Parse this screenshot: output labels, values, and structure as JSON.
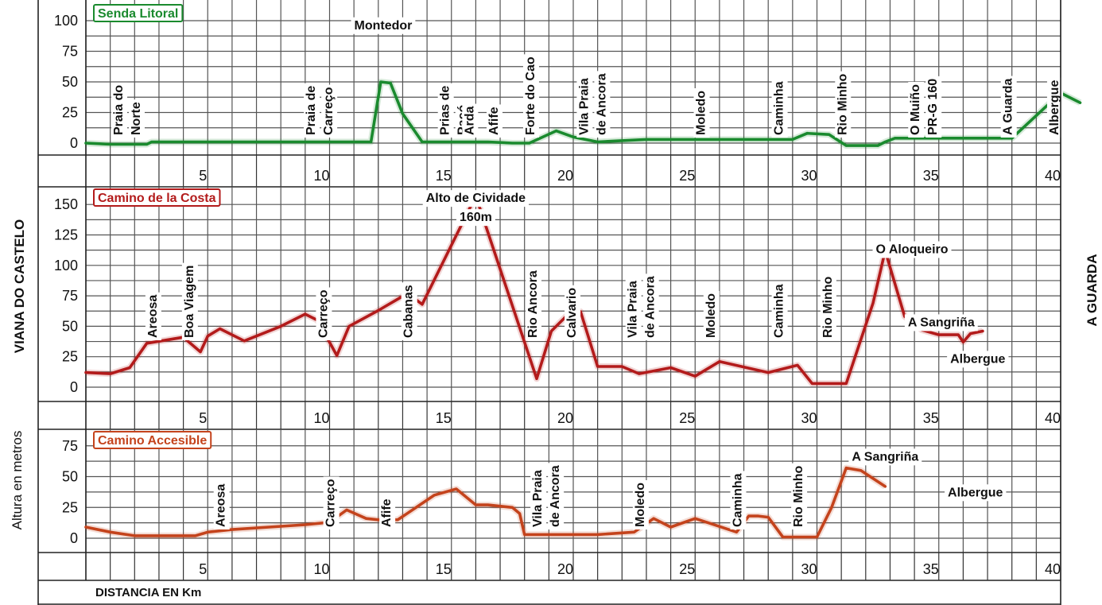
{
  "side_labels": {
    "left": "VIANA DO CASTELO",
    "right": "A GUARDA",
    "ylabel": "Altura en metros",
    "xlabel": "DISTANCIA EN Km"
  },
  "chart_data": [
    {
      "type": "line",
      "title": "Senda Litoral",
      "color": "#1a8a2e",
      "x_ticks": [
        5,
        10,
        15,
        20,
        25,
        30,
        35,
        40
      ],
      "y_ticks": [
        0,
        25,
        50,
        75,
        100
      ],
      "xlim": [
        0,
        40.8
      ],
      "ylim": [
        0,
        100
      ],
      "series": [
        {
          "x": [
            0,
            1,
            2,
            2.5,
            2.7,
            5,
            8,
            11,
            11.5,
            11.7,
            12.1,
            12.5,
            13,
            13.8,
            14.5,
            15.5,
            16.5,
            17.5,
            18.2,
            19.3,
            20,
            21,
            23,
            25,
            26.5,
            28.5,
            29,
            29.6,
            30.5,
            31.2,
            31.9,
            32.5,
            32.8,
            33.2,
            34,
            36,
            38,
            40,
            40.8
          ],
          "y": [
            0,
            -1,
            -1,
            -1,
            1,
            1,
            1,
            1,
            1,
            1,
            50,
            49,
            24,
            1,
            1,
            1,
            1,
            0,
            0,
            10,
            5,
            1,
            3,
            3,
            3,
            3,
            3,
            8,
            7,
            -2,
            -2,
            -2,
            1,
            4,
            4,
            4,
            4,
            41,
            33
          ]
        }
      ],
      "annotations": [
        {
          "x": 1.5,
          "lines": [
            "Praia do",
            "Norte"
          ],
          "rotate": true
        },
        {
          "x": 9.4,
          "lines": [
            "Praia de",
            "Carreço"
          ],
          "rotate": true
        },
        {
          "x": 12.2,
          "lines": [
            "Montedor"
          ],
          "rotate": false,
          "y": 93
        },
        {
          "x": 14.9,
          "lines": [
            "Prias de",
            "Paçó"
          ],
          "rotate": true
        },
        {
          "x": 15.9,
          "lines": [
            "Arda"
          ],
          "rotate": true
        },
        {
          "x": 16.9,
          "lines": [
            "Afife"
          ],
          "rotate": true
        },
        {
          "x": 18.4,
          "lines": [
            "Forte do Cao"
          ],
          "rotate": true
        },
        {
          "x": 20.6,
          "lines": [
            "Vila Praia",
            "de Ancora"
          ],
          "rotate": true
        },
        {
          "x": 25.4,
          "lines": [
            "Moledo"
          ],
          "rotate": true
        },
        {
          "x": 28.6,
          "lines": [
            "Caminha"
          ],
          "rotate": true
        },
        {
          "x": 31.2,
          "lines": [
            "Rio Minho"
          ],
          "rotate": true
        },
        {
          "x": 34.2,
          "lines": [
            "O Muiño",
            "PR-G 160"
          ],
          "rotate": true
        },
        {
          "x": 38.0,
          "lines": [
            "A Guarda"
          ],
          "rotate": true
        },
        {
          "x": 39.9,
          "lines": [
            "Albergue"
          ],
          "rotate": true
        }
      ]
    },
    {
      "type": "line",
      "title": "Camino de la Costa",
      "color": "#b31b1b",
      "x_ticks": [
        5,
        10,
        15,
        20,
        25,
        30,
        35,
        40
      ],
      "y_ticks": [
        0,
        25,
        50,
        75,
        100,
        125,
        150
      ],
      "xlim": [
        0,
        40.8
      ],
      "ylim": [
        0,
        150
      ],
      "series": [
        {
          "x": [
            0,
            1,
            1.8,
            2.5,
            4,
            4.7,
            5,
            5.5,
            6.5,
            8,
            9,
            9.5,
            10.3,
            10.8,
            12,
            13.2,
            13.8,
            16,
            18.5,
            19.1,
            19.7,
            20,
            20.3,
            21,
            22,
            22.7,
            24,
            25,
            26,
            28,
            29.2,
            29.8,
            30.3,
            30.7,
            31.2,
            32.3,
            32.8,
            33.6,
            34.3,
            35,
            35.8,
            36,
            36.3,
            36.8
          ],
          "y": [
            12,
            11,
            16,
            36,
            41,
            29,
            42,
            48,
            38,
            50,
            60,
            55,
            26,
            50,
            63,
            77,
            68,
            157,
            7,
            46,
            58,
            60,
            62,
            17,
            17,
            11,
            16,
            9,
            21,
            12,
            18,
            3,
            3,
            3,
            3,
            69,
            112,
            58,
            47,
            43,
            43,
            37,
            44,
            46
          ]
        }
      ],
      "annotations": [
        {
          "x": 2.9,
          "lines": [
            "Areosa"
          ],
          "rotate": true
        },
        {
          "x": 4.4,
          "lines": [
            "Boa Viagem"
          ],
          "rotate": true
        },
        {
          "x": 9.9,
          "lines": [
            "Carreço"
          ],
          "rotate": true
        },
        {
          "x": 13.4,
          "lines": [
            "Cabanas"
          ],
          "rotate": true
        },
        {
          "x": 16.0,
          "lines": [
            "Alto de Cividade",
            "160m"
          ],
          "rotate": false,
          "y": 152
        },
        {
          "x": 18.5,
          "lines": [
            "Rio Ancora"
          ],
          "rotate": true
        },
        {
          "x": 20.1,
          "lines": [
            "Calvario"
          ],
          "rotate": true
        },
        {
          "x": 22.6,
          "lines": [
            "Vila Praia",
            "de Ancora"
          ],
          "rotate": true
        },
        {
          "x": 25.8,
          "lines": [
            "Moledo"
          ],
          "rotate": true
        },
        {
          "x": 28.6,
          "lines": [
            "Caminha"
          ],
          "rotate": true
        },
        {
          "x": 30.6,
          "lines": [
            "Rio Minho"
          ],
          "rotate": true
        },
        {
          "x": 33.9,
          "lines": [
            "O Aloqueiro"
          ],
          "rotate": false,
          "y": 110
        },
        {
          "x": 35.1,
          "lines": [
            "A Sangriña"
          ],
          "rotate": false,
          "y": 50
        },
        {
          "x": 36.6,
          "lines": [
            "Albergue"
          ],
          "rotate": false,
          "y": 20
        }
      ]
    },
    {
      "type": "line",
      "title": "Camino Accesible",
      "color": "#c4431c",
      "x_ticks": [
        5,
        10,
        15,
        20,
        25,
        30,
        35,
        40
      ],
      "y_ticks": [
        0,
        25,
        50,
        75
      ],
      "xlim": [
        0,
        40.8
      ],
      "ylim": [
        0,
        75
      ],
      "series": [
        {
          "x": [
            0,
            1,
            2,
            4.5,
            5,
            6,
            9,
            10,
            10.7,
            11.5,
            12,
            12.8,
            14.3,
            15.2,
            16,
            16.5,
            17.5,
            17.8,
            18,
            19,
            21,
            22.5,
            23.3,
            24,
            25,
            26.7,
            27.2,
            27.6,
            28,
            28.6,
            29,
            30,
            30.6,
            31.2,
            31.8,
            32.8
          ],
          "y": [
            9,
            5,
            2,
            2,
            5,
            7,
            11,
            13,
            23,
            16,
            15,
            15,
            35,
            40,
            27,
            27,
            25,
            20,
            3,
            3,
            3,
            5,
            16,
            9,
            16,
            5,
            18,
            18,
            17,
            1,
            1,
            1,
            25,
            57,
            55,
            42
          ]
        }
      ],
      "annotations": [
        {
          "x": 5.7,
          "lines": [
            "Areosa"
          ],
          "rotate": true
        },
        {
          "x": 10.2,
          "lines": [
            "Carreço"
          ],
          "rotate": true
        },
        {
          "x": 12.5,
          "lines": [
            "Afife"
          ],
          "rotate": true
        },
        {
          "x": 18.7,
          "lines": [
            "Vila Praia",
            "de Ancora"
          ],
          "rotate": true
        },
        {
          "x": 22.9,
          "lines": [
            "Moledo"
          ],
          "rotate": true
        },
        {
          "x": 26.9,
          "lines": [
            "Caminha"
          ],
          "rotate": true
        },
        {
          "x": 29.4,
          "lines": [
            "Rio Minho"
          ],
          "rotate": true
        },
        {
          "x": 32.8,
          "lines": [
            "A Sangriña"
          ],
          "rotate": false,
          "y": 63
        },
        {
          "x": 36.5,
          "lines": [
            "Albergue"
          ],
          "rotate": false,
          "y": 34
        }
      ]
    }
  ]
}
